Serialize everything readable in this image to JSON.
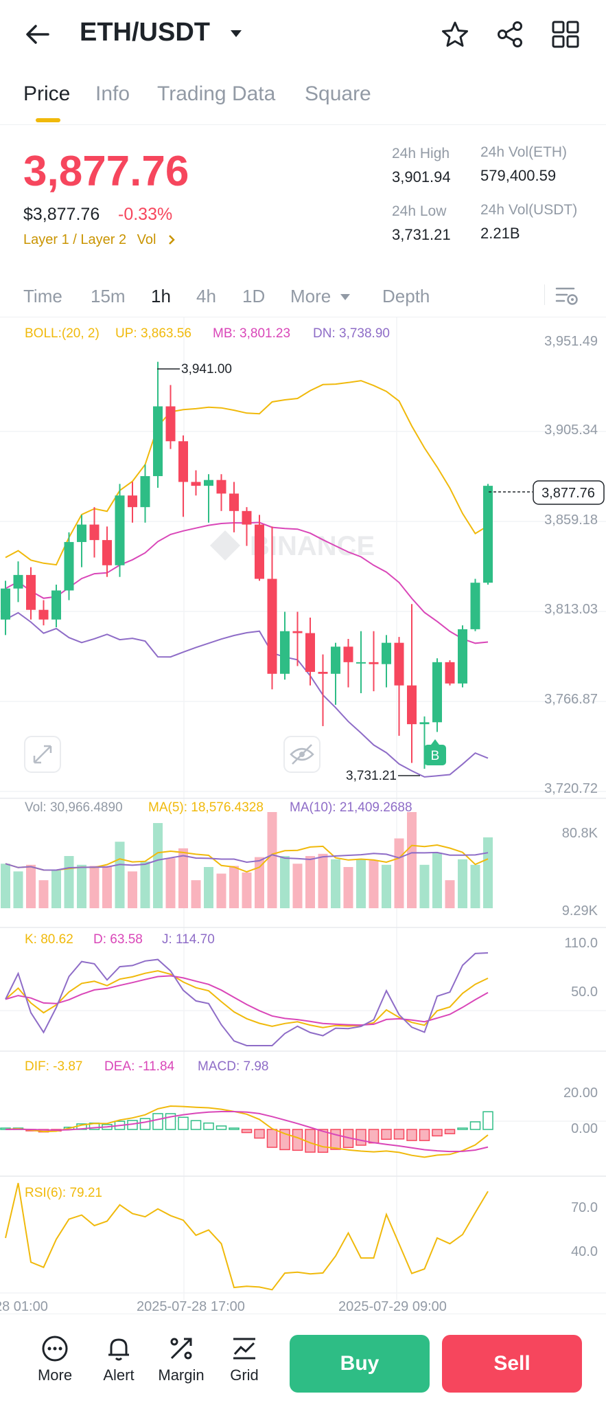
{
  "header": {
    "pair": "ETH/USDT",
    "icons": [
      "back-arrow-icon",
      "dropdown-caret-icon",
      "star-icon",
      "share-icon",
      "grid-icon"
    ]
  },
  "tabs": [
    "Price",
    "Info",
    "Trading Data",
    "Square"
  ],
  "ticker": {
    "last_price": "3,877.76",
    "fiat_price": "$3,877.76",
    "change": "-0.33%",
    "tag1": "Layer 1 / Layer 2",
    "tag2": "Vol",
    "high_label": "24h High",
    "high_value": "3,901.94",
    "low_label": "24h Low",
    "low_value": "3,731.21",
    "vol_eth_label": "24h Vol(ETH)",
    "vol_eth_value": "579,400.59",
    "vol_usdt_label": "24h Vol(USDT)",
    "vol_usdt_value": "2.21B"
  },
  "intervals": [
    "Time",
    "15m",
    "1h",
    "4h",
    "1D",
    "More",
    "Depth"
  ],
  "active_interval": "1h",
  "colors": {
    "up": "#2ebd85",
    "down": "#f6465d",
    "boll_up": "#f0b90b",
    "boll_mb": "#d946b8",
    "boll_dn": "#8e6cc7",
    "accent": "#f0b90b"
  },
  "chart_data": {
    "type": "candlestick",
    "boll": {
      "label": "BOLL:(20, 2)",
      "up": "UP: 3,863.56",
      "mb": "MB: 3,801.23",
      "dn": "DN: 3,738.90"
    },
    "price_axis": [
      "3,951.49",
      "3,905.34",
      "3,859.18",
      "3,813.03",
      "3,766.87",
      "3,720.72"
    ],
    "ylim": [
      3720.72,
      3951.49
    ],
    "current_price_tag": "3,877.76",
    "high_marker": "3,941.00",
    "low_marker": "3,731.21",
    "buy_marker": "B",
    "watermark": "BINANCE",
    "x_labels": [
      "28 01:00",
      "2025-07-28 17:00",
      "2025-07-29 09:00"
    ],
    "candles": [
      [
        3808,
        3824,
        3800,
        3828
      ],
      [
        3824,
        3831,
        3817,
        3838
      ],
      [
        3831,
        3813,
        3808,
        3835
      ],
      [
        3813,
        3808,
        3805,
        3818
      ],
      [
        3808,
        3823,
        3804,
        3826
      ],
      [
        3823,
        3848,
        3818,
        3853
      ],
      [
        3848,
        3857,
        3835,
        3862
      ],
      [
        3857,
        3849,
        3840,
        3866
      ],
      [
        3849,
        3836,
        3830,
        3856
      ],
      [
        3836,
        3872,
        3830,
        3878
      ],
      [
        3872,
        3866,
        3858,
        3879
      ],
      [
        3866,
        3882,
        3858,
        3888
      ],
      [
        3882,
        3918,
        3876,
        3941
      ],
      [
        3918,
        3900,
        3896,
        3929
      ],
      [
        3900,
        3879,
        3861,
        3903
      ],
      [
        3879,
        3877,
        3872,
        3885
      ],
      [
        3877,
        3880,
        3858,
        3883
      ],
      [
        3880,
        3873,
        3864,
        3883
      ],
      [
        3873,
        3864,
        3853,
        3879
      ],
      [
        3864,
        3857,
        3846,
        3866
      ],
      [
        3857,
        3829,
        3828,
        3862
      ],
      [
        3829,
        3780,
        3772,
        3856
      ],
      [
        3780,
        3802,
        3777,
        3812
      ],
      [
        3802,
        3801,
        3784,
        3812
      ],
      [
        3801,
        3781,
        3774,
        3809
      ],
      [
        3781,
        3780,
        3753,
        3790
      ],
      [
        3780,
        3794,
        3764,
        3796
      ],
      [
        3794,
        3786,
        3773,
        3798
      ],
      [
        3786,
        3786,
        3770,
        3802
      ],
      [
        3786,
        3785,
        3771,
        3802
      ],
      [
        3785,
        3796,
        3773,
        3800
      ],
      [
        3796,
        3774,
        3748,
        3799
      ],
      [
        3774,
        3754,
        3734,
        3816
      ],
      [
        3754,
        3755,
        3731,
        3758
      ],
      [
        3755,
        3786,
        3750,
        3788
      ],
      [
        3786,
        3775,
        3774,
        3787
      ],
      [
        3775,
        3803,
        3773,
        3805
      ],
      [
        3803,
        3827,
        3802,
        3829
      ],
      [
        3827,
        3877,
        3826,
        3878
      ]
    ],
    "volume": {
      "label": "Vol: 30,966.4890",
      "ma5": "MA(5): 18,576.4328",
      "ma10": "MA(10): 21,409.2688",
      "axis": [
        "80.8K",
        "9.29K"
      ]
    },
    "kdj": {
      "k": "K: 80.62",
      "d": "D: 63.58",
      "j": "J: 114.70",
      "axis": [
        "110.0",
        "50.0"
      ]
    },
    "macd": {
      "dif": "DIF: -3.87",
      "dea": "DEA: -11.84",
      "macd": "MACD: 7.98",
      "axis": [
        "20.00",
        "0.00"
      ]
    },
    "rsi": {
      "label": "RSI(6): 79.21",
      "axis": [
        "70.0",
        "40.0"
      ]
    }
  },
  "bottom_nav": [
    "More",
    "Alert",
    "Margin",
    "Grid"
  ],
  "actions": {
    "buy": "Buy",
    "sell": "Sell"
  }
}
